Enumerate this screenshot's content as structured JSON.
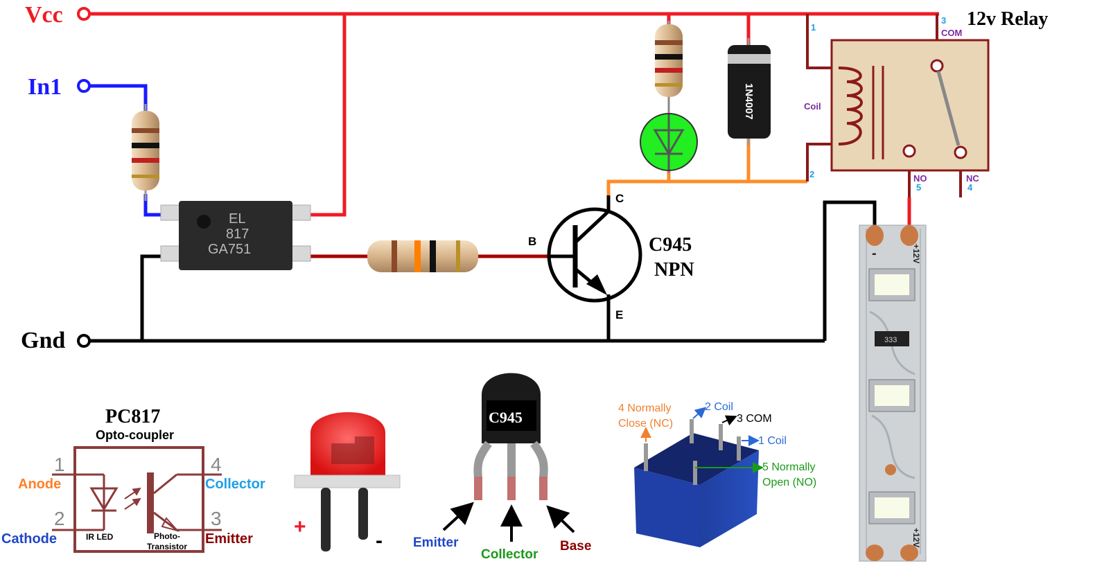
{
  "nets": {
    "vcc": "Vcc",
    "in1": "In1",
    "gnd": "Gnd"
  },
  "relay": {
    "title": "12v Relay",
    "pin1": "1",
    "pin2": "2",
    "pin3": "3",
    "pin4": "4",
    "pin5": "5",
    "com": "COM",
    "coil": "Coil",
    "no": "NO",
    "nc": "NC"
  },
  "diode": {
    "label": "1N4007"
  },
  "optocoupler_chip": {
    "line1": "EL",
    "line2": "817",
    "line3": "GA751"
  },
  "transistor": {
    "name": "C945",
    "type": "NPN",
    "c": "C",
    "b": "B",
    "e": "E"
  },
  "pc817": {
    "title": "PC817",
    "subtitle": "Opto-coupler",
    "pin1": "1",
    "pin2": "2",
    "pin3": "3",
    "pin4": "4",
    "anode": "Anode",
    "cathode": "Cathode",
    "collector": "Collector",
    "emitter": "Emitter",
    "ir_led": "IR LED",
    "photo1": "Photo-",
    "photo2": "Transistor"
  },
  "led_part": {
    "plus": "+",
    "minus": "-"
  },
  "c945_part": {
    "marking": "C945",
    "emitter": "Emitter",
    "collector": "Collector",
    "base": "Base"
  },
  "relay_part": {
    "nc1": "4 Normally",
    "nc2": "Close (NC)",
    "coil2": "2 Coil",
    "com3": "3 COM",
    "coil1": "1 Coil",
    "no1": "5 Normally",
    "no2": "Open (NO)"
  },
  "strip": {
    "minus": "-",
    "plus_top": "+12V",
    "plus_bottom": "+12V",
    "smd": "333"
  },
  "colors": {
    "vcc_wire": "#ee1c25",
    "in1_wire": "#1a1aff",
    "gnd_wire": "#000000",
    "base_wire": "#a60000",
    "collector_wire": "#ff8c2a",
    "relay_wire": "#8b1a1a",
    "led_green": "#22ee22",
    "anode": "#ff7f27",
    "cathode": "#2046c8",
    "collector_blue": "#1ea0e6",
    "emitter_red": "#8b0000",
    "collector_green": "#1a9a1a"
  }
}
